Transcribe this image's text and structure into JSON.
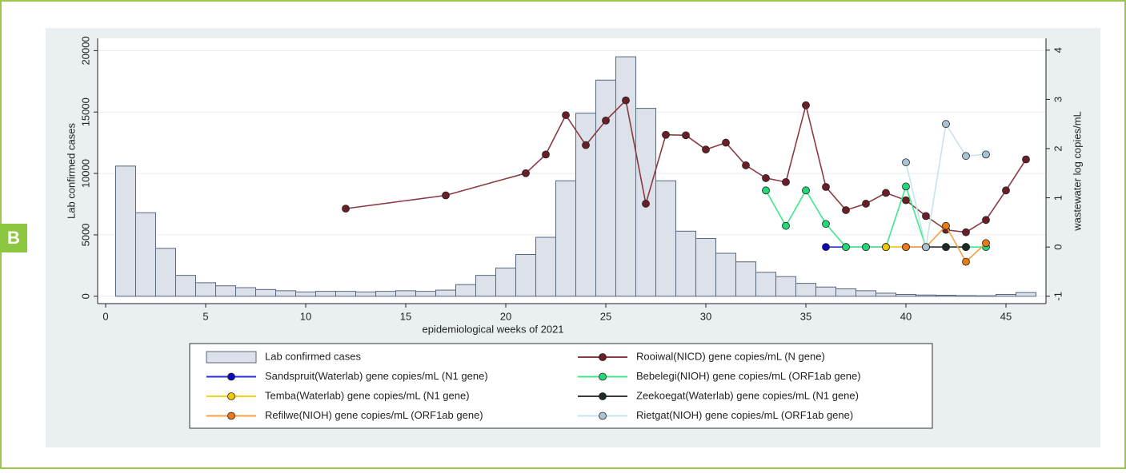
{
  "panel_label": "B",
  "chart_data": {
    "type": "combo",
    "xlabel": "epidemiological weeks of 2021",
    "ylabel": "Lab  confirmed cases",
    "y2label": "wastewater log copies/mL",
    "xlim": [
      -0.4,
      47
    ],
    "xticks": [
      0,
      5,
      10,
      15,
      20,
      25,
      30,
      35,
      40,
      45
    ],
    "ylim": [
      -600,
      21000
    ],
    "yticks": [
      0,
      5000,
      10000,
      15000,
      20000
    ],
    "y2lim": [
      -1.15,
      4.24
    ],
    "y2ticks": [
      -1,
      0,
      1,
      2,
      3,
      4
    ],
    "grid": true,
    "series": [
      {
        "name": "Lab  confirmed cases",
        "type": "bar",
        "color": "#dde2ea",
        "edge": "#56667c",
        "x": [
          1,
          2,
          3,
          4,
          5,
          6,
          7,
          8,
          9,
          10,
          11,
          12,
          13,
          14,
          15,
          16,
          17,
          18,
          19,
          20,
          21,
          22,
          23,
          24,
          25,
          26,
          27,
          28,
          29,
          30,
          31,
          32,
          33,
          34,
          35,
          36,
          37,
          38,
          39,
          40,
          41,
          42,
          43,
          44,
          45,
          46
        ],
        "values": [
          10600,
          6800,
          3900,
          1700,
          1100,
          850,
          700,
          550,
          450,
          350,
          400,
          400,
          350,
          400,
          450,
          400,
          500,
          950,
          1700,
          2300,
          3400,
          4800,
          9400,
          14900,
          17600,
          19500,
          15300,
          9400,
          5300,
          4700,
          3500,
          2800,
          1950,
          1600,
          1050,
          750,
          600,
          450,
          250,
          150,
          100,
          80,
          50,
          40,
          150,
          300
        ]
      },
      {
        "name": "Rooiwal(NICD) gene copies/mL (N gene)",
        "type": "line",
        "axis": "y2",
        "color": "#8b3a42",
        "marker": "#6a1e28",
        "x": [
          12,
          17,
          21,
          22,
          23,
          24,
          25,
          26,
          27,
          28,
          29,
          30,
          31,
          32,
          33,
          34,
          35,
          36,
          37,
          38,
          39,
          40,
          41,
          42,
          43,
          44,
          45,
          46
        ],
        "values": [
          0.78,
          1.05,
          1.5,
          1.88,
          2.68,
          2.07,
          2.57,
          2.98,
          0.88,
          2.28,
          2.27,
          1.98,
          2.12,
          1.66,
          1.4,
          1.32,
          2.88,
          1.22,
          0.75,
          0.88,
          1.1,
          0.95,
          0.63,
          0.35,
          0.3,
          0.55,
          1.15,
          1.78
        ]
      },
      {
        "name": "Sandspruit(Waterlab) gene copies/mL (N1 gene)",
        "type": "line",
        "axis": "y2",
        "color": "#2a2ae0",
        "marker": "#0a0ab8",
        "x": [
          36,
          37,
          38,
          39,
          40,
          41,
          42,
          43
        ],
        "values": [
          0,
          0,
          0,
          0,
          0,
          0,
          0,
          0
        ]
      },
      {
        "name": "Bebelegi(NIOH) gene copies/mL (ORF1ab gene)",
        "type": "line",
        "axis": "y2",
        "color": "#3ee88a",
        "marker": "#22d877",
        "x": [
          33,
          34,
          35,
          36,
          37,
          38,
          39,
          40,
          41,
          42,
          43,
          44
        ],
        "values": [
          1.15,
          0.43,
          1.15,
          0.47,
          0,
          0,
          0,
          1.23,
          0,
          0,
          0,
          0
        ]
      },
      {
        "name": "Temba(Waterlab) gene copies/mL (N1 gene)",
        "type": "line",
        "axis": "y2",
        "color": "#f5d21e",
        "marker": "#f0c800",
        "x": [
          39,
          40
        ],
        "values": [
          0,
          0
        ]
      },
      {
        "name": "Zeekoegat(Waterlab) gene copies/mL (N1 gene)",
        "type": "line",
        "axis": "y2",
        "color": "#3a3a3a",
        "marker": "#1e2a24",
        "x": [
          41,
          42,
          43
        ],
        "values": [
          0,
          0,
          0
        ]
      },
      {
        "name": "Refilwe(NIOH) gene copies/mL (ORF1ab gene)",
        "type": "line",
        "axis": "y2",
        "color": "#f5a040",
        "marker": "#e87a18",
        "x": [
          40,
          41,
          42,
          43,
          44
        ],
        "values": [
          0,
          0,
          0.43,
          -0.3,
          0.08
        ]
      },
      {
        "name": "Rietgat(NIOH) gene copies/mL (ORF1ab gene)",
        "type": "line",
        "axis": "y2",
        "color": "#c4e4ec",
        "marker": "#a8c4d4",
        "x": [
          40,
          41,
          42,
          43,
          44
        ],
        "values": [
          1.72,
          0,
          2.5,
          1.85,
          1.88
        ]
      }
    ]
  }
}
